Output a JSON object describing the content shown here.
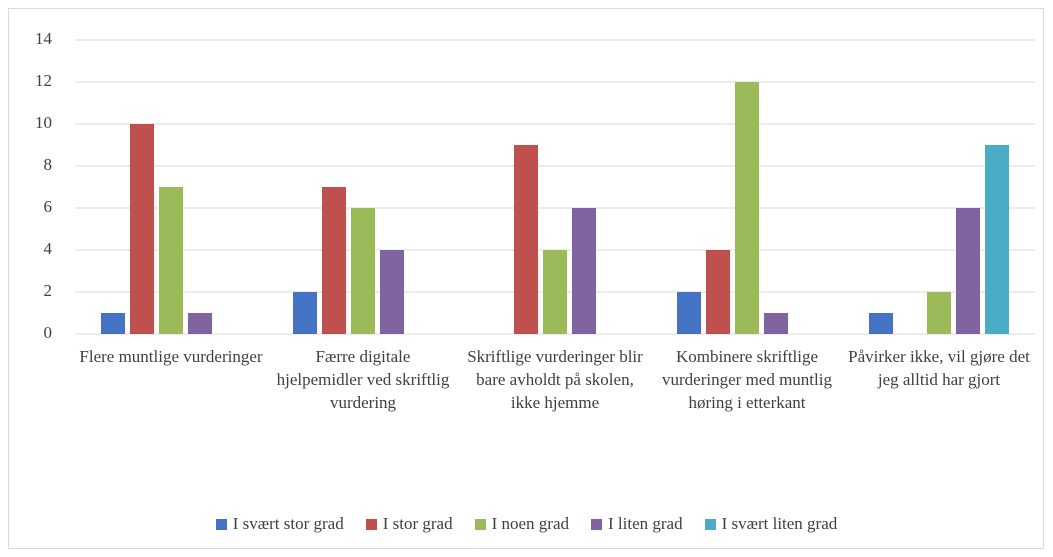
{
  "chart_data": {
    "type": "bar",
    "categories": [
      "Flere muntlige vurderinger",
      "Færre digitale hjelpemidler ved skriftlig vurdering",
      "Skriftlige vurderinger blir bare avholdt på skolen, ikke hjemme",
      "Kombinere skriftlige vurderinger med muntlig høring i etterkant",
      "Påvirker ikke, vil gjøre det jeg alltid har gjort"
    ],
    "series": [
      {
        "name": "I svært stor grad",
        "color": "#4472c4",
        "values": [
          1,
          2,
          0,
          2,
          1
        ]
      },
      {
        "name": "I stor grad",
        "color": "#c0504d",
        "values": [
          10,
          7,
          9,
          4,
          0
        ]
      },
      {
        "name": "I noen grad",
        "color": "#9bbb59",
        "values": [
          7,
          6,
          4,
          12,
          2
        ]
      },
      {
        "name": "I liten grad",
        "color": "#8064a2",
        "values": [
          1,
          4,
          6,
          1,
          6
        ]
      },
      {
        "name": "I svært liten grad",
        "color": "#4bacc6",
        "values": [
          0,
          0,
          0,
          0,
          9
        ]
      }
    ],
    "ylim": [
      0,
      14
    ],
    "yticks": [
      0,
      2,
      4,
      6,
      8,
      10,
      12,
      14
    ],
    "grid": true,
    "legend": "bottom"
  }
}
